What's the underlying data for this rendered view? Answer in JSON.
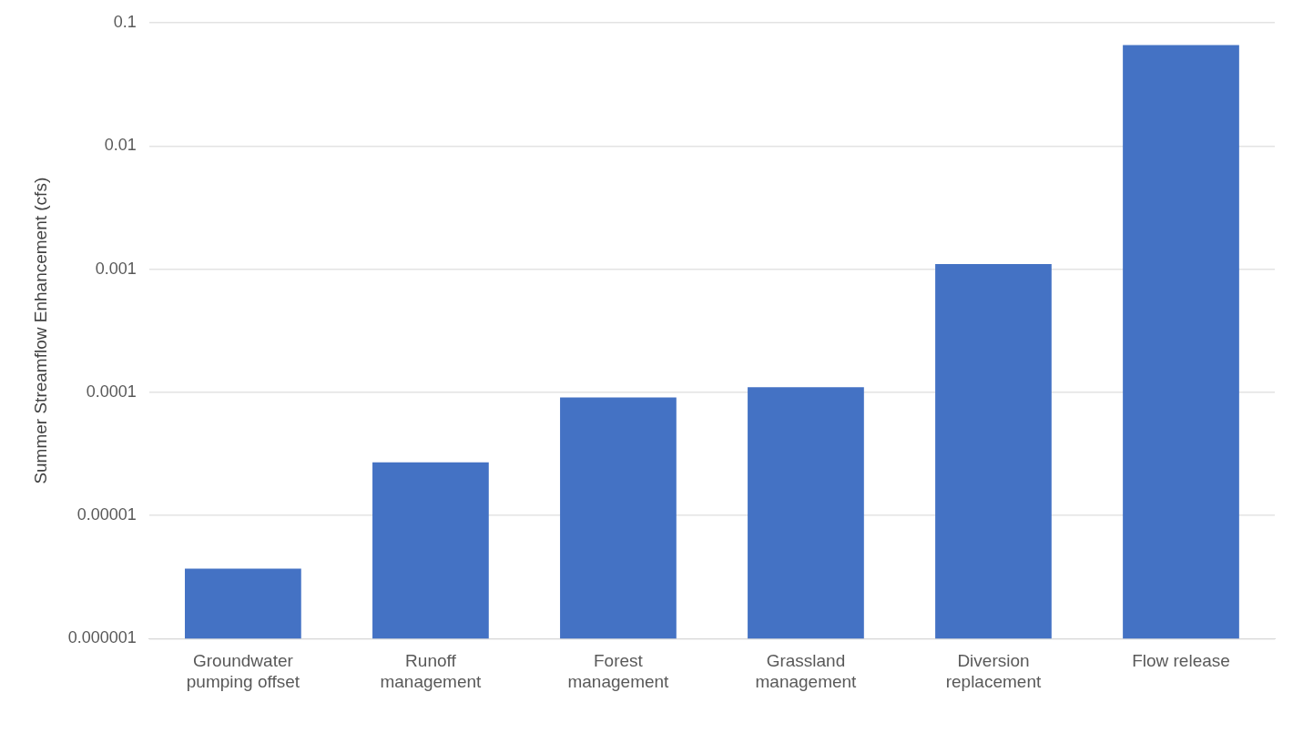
{
  "chart_data": {
    "type": "bar",
    "ylabel": "Summer Streamflow Enhancement (cfs)",
    "categories": [
      "Groundwater pumping offset",
      "Runoff management",
      "Forest management",
      "Grassland management",
      "Diversion replacement",
      "Flow release"
    ],
    "values": [
      3.7e-06,
      2.7e-05,
      9.1e-05,
      0.00011,
      0.0011,
      0.066
    ],
    "color": "#4472c4",
    "log": "y",
    "ylim": [
      1e-06,
      0.1
    ],
    "yticks": [
      {
        "value": 1e-06,
        "label": "0.000001"
      },
      {
        "value": 1e-05,
        "label": "0.00001"
      },
      {
        "value": 0.0001,
        "label": "0.0001"
      },
      {
        "value": 0.001,
        "label": "0.001"
      },
      {
        "value": 0.01,
        "label": "0.01"
      },
      {
        "value": 0.1,
        "label": "0.1"
      }
    ],
    "grid": "y",
    "legend": false
  }
}
